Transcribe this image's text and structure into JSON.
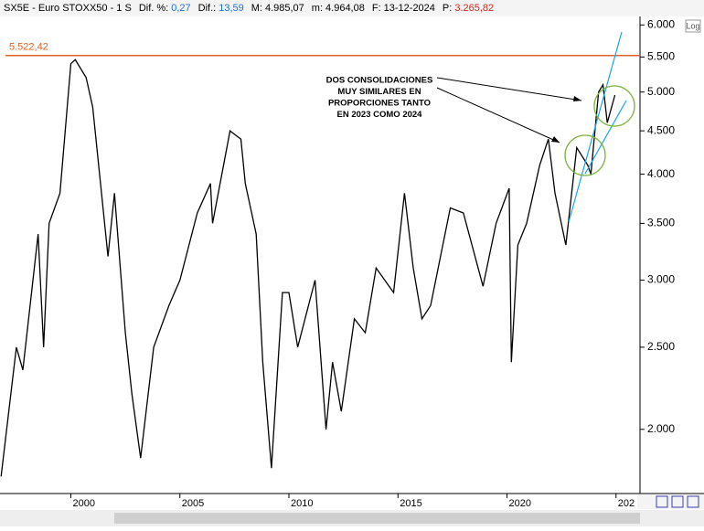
{
  "header": {
    "name": "SX5E - Euro STOXX50 - 1 S",
    "items": [
      {
        "label": "Dif. %:",
        "value": "0,27",
        "color": "#1e6fd9"
      },
      {
        "label": "Dif.:",
        "value": "13,59",
        "color": "#1e6fd9"
      },
      {
        "label": "M:",
        "value": "4.985,07",
        "color": "#000000"
      },
      {
        "label": "m:",
        "value": "4.964,08",
        "color": "#000000"
      },
      {
        "label": "F:",
        "value": "13-12-2024",
        "color": "#000000"
      },
      {
        "label": "P:",
        "value": "3.265,82",
        "color": "#d9261c"
      }
    ]
  },
  "log_button": "Log",
  "chart_data": {
    "type": "line",
    "log_scale": true,
    "color": "#000000",
    "xlim": [
      1996.75,
      2026.1
    ],
    "ylim": [
      1680,
      6140
    ],
    "xticks": [
      2000,
      2005,
      2010,
      2015,
      2020,
      {
        "value": 2025,
        "label": "202"
      }
    ],
    "yticks": [
      {
        "value": 2000,
        "label": "2.000"
      },
      {
        "value": 2500,
        "label": "2.500"
      },
      {
        "value": 3000,
        "label": "3.000"
      },
      {
        "value": 3500,
        "label": "3.500"
      },
      {
        "value": 4000,
        "label": "4.000"
      },
      {
        "value": 4500,
        "label": "4.500"
      },
      {
        "value": 5000,
        "label": "5.000"
      },
      {
        "value": 5500,
        "label": "5.500"
      },
      {
        "value": 6000,
        "label": "6.000"
      }
    ],
    "hline": {
      "value": 5522.42,
      "label": "5.522,42",
      "color": "#e0622a"
    },
    "annotation": [
      "DOS CONSOLIDACIONES",
      "MUY SIMILARES EN",
      "PROPORCIONES TANTO",
      "EN 2023 COMO 2024"
    ],
    "x": [
      1996.8,
      1997.5,
      1997.8,
      1998.5,
      1998.75,
      1999.0,
      1999.5,
      2000.0,
      2000.2,
      2000.7,
      2001.0,
      2001.7,
      2002.0,
      2002.5,
      2002.8,
      2003.2,
      2003.8,
      2004.5,
      2005.0,
      2005.8,
      2006.4,
      2006.5,
      2007.3,
      2007.8,
      2008.0,
      2008.5,
      2008.8,
      2009.2,
      2009.7,
      2010.0,
      2010.4,
      2011.2,
      2011.7,
      2012.0,
      2012.4,
      2013.0,
      2013.5,
      2014.0,
      2014.8,
      2015.3,
      2015.7,
      2016.1,
      2016.5,
      2017.4,
      2018.0,
      2018.9,
      2019.5,
      2020.1,
      2020.2,
      2020.5,
      2020.9,
      2021.5,
      2021.9,
      2022.2,
      2022.7,
      2023.2,
      2023.7,
      2023.85,
      2024.2,
      2024.4,
      2024.6,
      2024.95
    ],
    "values": [
      1760,
      2500,
      2350,
      3400,
      2500,
      3500,
      3800,
      5400,
      5460,
      5200,
      4800,
      3200,
      3800,
      2600,
      2200,
      1850,
      2500,
      2800,
      3000,
      3600,
      3900,
      3500,
      4500,
      4400,
      3900,
      3400,
      2400,
      1800,
      2900,
      2900,
      2500,
      3000,
      2000,
      2400,
      2100,
      2700,
      2600,
      3100,
      2900,
      3800,
      3100,
      2700,
      2800,
      3650,
      3600,
      2950,
      3500,
      3850,
      2400,
      3300,
      3500,
      4100,
      4400,
      3800,
      3300,
      4300,
      4100,
      4000,
      5000,
      5100,
      4600,
      4960
    ]
  }
}
